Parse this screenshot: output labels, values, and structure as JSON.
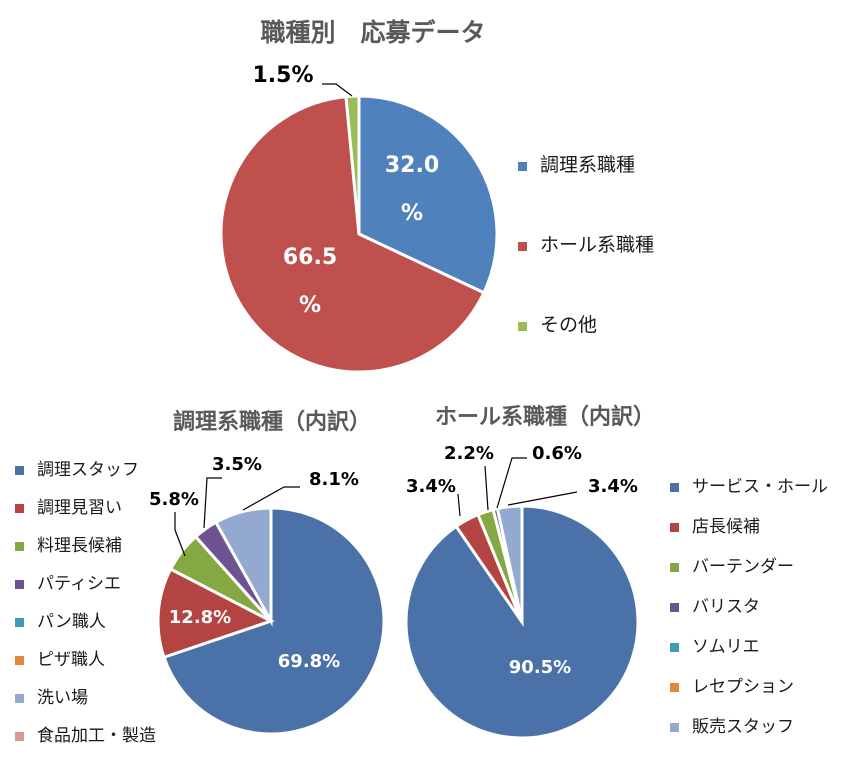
{
  "chart_data": [
    {
      "type": "pie",
      "title": "職種別　応募データ",
      "categories": [
        "調理系職種",
        "ホール系職種",
        "その他"
      ],
      "values": [
        32.0,
        66.5,
        1.5
      ],
      "data_labels": [
        "32.0\n%",
        "66.5\n%",
        "1.5%"
      ],
      "colors": [
        "#4f81bd",
        "#c0504d",
        "#9bbb59"
      ],
      "legend": "right"
    },
    {
      "type": "pie",
      "title": "調理系職種（内訳）",
      "categories": [
        "調理スタッフ",
        "調理見習い",
        "料理長候補",
        "パティシエ",
        "パン職人",
        "ピザ職人",
        "洗い場",
        "食品加工・製造"
      ],
      "values": [
        69.8,
        12.8,
        5.8,
        3.5,
        0,
        0,
        8.1,
        0
      ],
      "data_labels": [
        "69.8%",
        "12.8%",
        "5.8%",
        "3.5%",
        "",
        "",
        "8.1%",
        ""
      ],
      "colors": [
        "#4a72a8",
        "#b34441",
        "#86a843",
        "#6d5392",
        "#3f9bb1",
        "#e0873a",
        "#93a9cf",
        "#d89a98"
      ],
      "legend": "left"
    },
    {
      "type": "pie",
      "title": "ホール系職種（内訳）",
      "categories": [
        "サービス・ホール",
        "店長候補",
        "バーテンダー",
        "バリスタ",
        "ソムリエ",
        "レセプション",
        "販売スタッフ"
      ],
      "values": [
        90.5,
        3.4,
        2.2,
        0.6,
        0,
        0,
        3.4
      ],
      "data_labels": [
        "90.5%",
        "3.4%",
        "2.2%",
        "0.6%",
        "",
        "",
        "3.4%"
      ],
      "colors": [
        "#4a72a8",
        "#b34441",
        "#86a843",
        "#6d5392",
        "#3f9bb1",
        "#e0873a",
        "#93a9cf"
      ],
      "legend": "right"
    }
  ]
}
